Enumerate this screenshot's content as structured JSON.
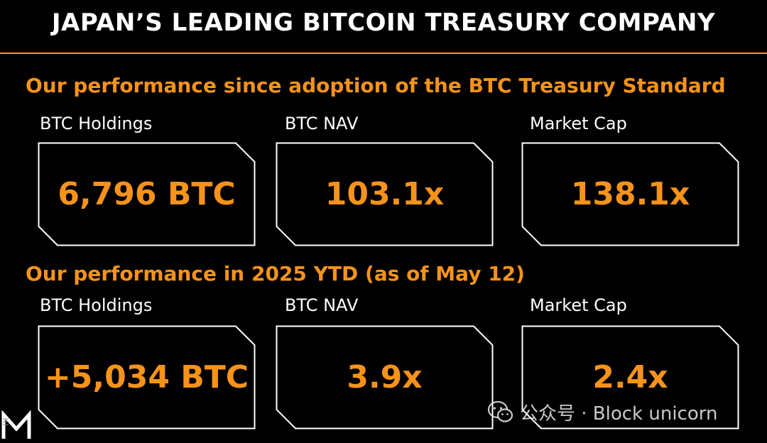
{
  "header": {
    "title": "JAPAN’S LEADING BITCOIN TREASURY COMPANY"
  },
  "colors": {
    "accent": "#f7931a",
    "text": "#ffffff",
    "background": "#000000"
  },
  "sections": [
    {
      "title": "Our performance since adoption of the BTC Treasury Standard",
      "metrics": [
        {
          "label": "BTC Holdings",
          "value": "6,796 BTC"
        },
        {
          "label": "BTC NAV",
          "value": "103.1x"
        },
        {
          "label": "Market Cap",
          "value": "138.1x"
        }
      ]
    },
    {
      "title": "Our performance in 2025 YTD (as of May 12)",
      "metrics": [
        {
          "label": "BTC Holdings",
          "value": "+5,034 BTC"
        },
        {
          "label": "BTC NAV",
          "value": "3.9x"
        },
        {
          "label": "Market Cap",
          "value": "2.4x"
        }
      ]
    }
  ],
  "watermark": {
    "icon": "wechat-icon",
    "text": "公众号 · Block unicorn"
  },
  "logo": {
    "icon": "metaplanet-logo-icon"
  }
}
